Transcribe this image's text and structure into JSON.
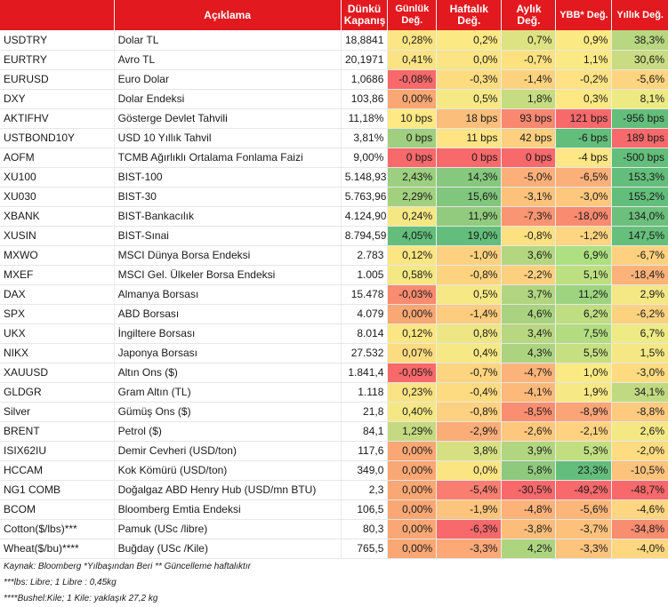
{
  "header": {
    "aciklama": "Açıklama",
    "close_line1": "Dünkü",
    "close_line2": "Kapanış",
    "daily": "Günlük Değ.",
    "weekly_line1": "Haftalık",
    "weekly_line2": "Değ.",
    "monthly_line1": "Aylık",
    "monthly_line2": "Değ.",
    "ytd": "YBB* Değ.",
    "yearly": "Yıllık Değ."
  },
  "rows": [
    {
      "sym": "USDTRY",
      "desc": "Dolar TL",
      "close": "18,8841",
      "cells": [
        {
          "v": "0,28%",
          "c": "#fbe584"
        },
        {
          "v": "0,2%",
          "c": "#fbe984"
        },
        {
          "v": "0,7%",
          "c": "#dde282"
        },
        {
          "v": "0,9%",
          "c": "#fbe983"
        },
        {
          "v": "38,3%",
          "c": "#b8d780"
        }
      ]
    },
    {
      "sym": "EURTRY",
      "desc": "Avro TL",
      "close": "20,1971",
      "cells": [
        {
          "v": "0,41%",
          "c": "#fbe383"
        },
        {
          "v": "0,0%",
          "c": "#fbe482"
        },
        {
          "v": "-0,7%",
          "c": "#fde17f"
        },
        {
          "v": "1,1%",
          "c": "#fbe983"
        },
        {
          "v": "30,6%",
          "c": "#c9dc81"
        }
      ]
    },
    {
      "sym": "EURUSD",
      "desc": "Euro Dolar",
      "close": "1,0686",
      "cells": [
        {
          "v": "-0,08%",
          "c": "#f8696b"
        },
        {
          "v": "-0,3%",
          "c": "#fddc80"
        },
        {
          "v": "-1,4%",
          "c": "#fdd27f"
        },
        {
          "v": "-0,2%",
          "c": "#fee283"
        },
        {
          "v": "-5,6%",
          "c": "#fdd480"
        }
      ]
    },
    {
      "sym": "DXY",
      "desc": "Dolar Endeksi",
      "close": "103,86",
      "cells": [
        {
          "v": "0,00%",
          "c": "#f9a774"
        },
        {
          "v": "0,5%",
          "c": "#f6e884"
        },
        {
          "v": "1,8%",
          "c": "#c5dc81"
        },
        {
          "v": "0,3%",
          "c": "#fde883"
        },
        {
          "v": "8,1%",
          "c": "#edea84"
        }
      ]
    },
    {
      "sym": "AKTIFHV",
      "desc": "Gösterge Devlet Tahvili",
      "close": "11,18%",
      "cells": [
        {
          "v": "10 bps",
          "c": "#fee984"
        },
        {
          "v": "18 bps",
          "c": "#fcbf7b"
        },
        {
          "v": "93 bps",
          "c": "#f98871"
        },
        {
          "v": "121 bps",
          "c": "#f8696b"
        },
        {
          "v": "-956 bps",
          "c": "#63be7b"
        }
      ]
    },
    {
      "sym": "USTBOND10Y",
      "desc": "USD 10 Yıllık Tahvil",
      "close": "3,81%",
      "cells": [
        {
          "v": "0 bps",
          "c": "#9fcf7f"
        },
        {
          "v": "11 bps",
          "c": "#fee483"
        },
        {
          "v": "42 bps",
          "c": "#fdcf7e"
        },
        {
          "v": "-6 bps",
          "c": "#63be7b"
        },
        {
          "v": "189 bps",
          "c": "#f8696b"
        }
      ]
    },
    {
      "sym": "AOFM",
      "desc": "TCMB Ağırlıklı Ortalama Fonlama Faizi",
      "close": "9,00%",
      "cells": [
        {
          "v": "0 bps",
          "c": "#f8696b"
        },
        {
          "v": "0 bps",
          "c": "#f8696b"
        },
        {
          "v": "0 bps",
          "c": "#f8696b"
        },
        {
          "v": "-4 bps",
          "c": "#fee784"
        },
        {
          "v": "-500 bps",
          "c": "#63be7b"
        }
      ]
    },
    {
      "sym": "XU100",
      "desc": "BIST-100",
      "close": "5.148,93",
      "cells": [
        {
          "v": "2,43%",
          "c": "#9ccf7f"
        },
        {
          "v": "14,3%",
          "c": "#86c87d"
        },
        {
          "v": "-5,0%",
          "c": "#fcaf78"
        },
        {
          "v": "-6,5%",
          "c": "#fcb079"
        },
        {
          "v": "153,3%",
          "c": "#64be7b"
        }
      ]
    },
    {
      "sym": "XU030",
      "desc": "BIST-30",
      "close": "5.763,96",
      "cells": [
        {
          "v": "2,29%",
          "c": "#a1d07f"
        },
        {
          "v": "15,6%",
          "c": "#80c67d"
        },
        {
          "v": "-3,1%",
          "c": "#fcc27c"
        },
        {
          "v": "-3,0%",
          "c": "#fdc87d"
        },
        {
          "v": "155,2%",
          "c": "#63be7b"
        }
      ]
    },
    {
      "sym": "XBANK",
      "desc": "BIST-Bankacılık",
      "close": "4.124,90",
      "cells": [
        {
          "v": "0,24%",
          "c": "#f5e884"
        },
        {
          "v": "11,9%",
          "c": "#92cb7e"
        },
        {
          "v": "-7,3%",
          "c": "#fa9573"
        },
        {
          "v": "-18,0%",
          "c": "#f98b70"
        },
        {
          "v": "134,0%",
          "c": "#6cc07c"
        }
      ]
    },
    {
      "sym": "XUSIN",
      "desc": "BIST-Sınai",
      "close": "8.794,59",
      "cells": [
        {
          "v": "4,05%",
          "c": "#63be7b"
        },
        {
          "v": "19,0%",
          "c": "#63be7b"
        },
        {
          "v": "-0,8%",
          "c": "#fde080"
        },
        {
          "v": "-1,2%",
          "c": "#fed580"
        },
        {
          "v": "147,5%",
          "c": "#66bf7b"
        }
      ]
    },
    {
      "sym": "MXWO",
      "desc": "MSCI Dünya Borsa Endeksi",
      "close": "2.783",
      "cells": [
        {
          "v": "0,12%",
          "c": "#fce683"
        },
        {
          "v": "-1,0%",
          "c": "#fdd17f"
        },
        {
          "v": "3,6%",
          "c": "#b4d680"
        },
        {
          "v": "6,9%",
          "c": "#ace080"
        },
        {
          "v": "-6,7%",
          "c": "#fdd17f"
        }
      ]
    },
    {
      "sym": "MXEF",
      "desc": "MSCI Gel. Ülkeler Borsa Endeksi",
      "close": "1.005",
      "cells": [
        {
          "v": "0,58%",
          "c": "#f3e884"
        },
        {
          "v": "-0,8%",
          "c": "#fdd37f"
        },
        {
          "v": "-2,2%",
          "c": "#fdd07f"
        },
        {
          "v": "5,1%",
          "c": "#bcdf81"
        },
        {
          "v": "-18,4%",
          "c": "#fcb379"
        }
      ]
    },
    {
      "sym": "DAX",
      "desc": "Almanya Borsası",
      "close": "15.478",
      "cells": [
        {
          "v": "-0,03%",
          "c": "#f98b70"
        },
        {
          "v": "0,5%",
          "c": "#f6e884"
        },
        {
          "v": "3,7%",
          "c": "#b1d580"
        },
        {
          "v": "11,2%",
          "c": "#9ed480"
        },
        {
          "v": "2,9%",
          "c": "#f3e884"
        }
      ]
    },
    {
      "sym": "SPX",
      "desc": "ABD Borsası",
      "close": "4.079",
      "cells": [
        {
          "v": "0,00%",
          "c": "#f9a774"
        },
        {
          "v": "-1,4%",
          "c": "#fdcc7e"
        },
        {
          "v": "4,6%",
          "c": "#a9d37f"
        },
        {
          "v": "6,2%",
          "c": "#bfdd81"
        },
        {
          "v": "-6,2%",
          "c": "#fdd27f"
        }
      ]
    },
    {
      "sym": "UKX",
      "desc": "İngiltere Borsası",
      "close": "8.014",
      "cells": [
        {
          "v": "0,12%",
          "c": "#fce683"
        },
        {
          "v": "0,8%",
          "c": "#eee684"
        },
        {
          "v": "3,4%",
          "c": "#b7d780"
        },
        {
          "v": "7,5%",
          "c": "#b3dc80"
        },
        {
          "v": "6,7%",
          "c": "#eeea84"
        }
      ]
    },
    {
      "sym": "NIKX",
      "desc": "Japonya Borsası",
      "close": "27.532",
      "cells": [
        {
          "v": "0,07%",
          "c": "#fbdc81"
        },
        {
          "v": "0,4%",
          "c": "#f6e884"
        },
        {
          "v": "4,3%",
          "c": "#acd480"
        },
        {
          "v": "5,5%",
          "c": "#c5df81"
        },
        {
          "v": "1,5%",
          "c": "#f5e884"
        }
      ]
    },
    {
      "sym": "XAUUSD",
      "desc": "Altın Ons ($)",
      "close": "1.841,4",
      "cells": [
        {
          "v": "-0,05%",
          "c": "#f8696b"
        },
        {
          "v": "-0,7%",
          "c": "#fdd47f"
        },
        {
          "v": "-4,7%",
          "c": "#fcb379"
        },
        {
          "v": "1,0%",
          "c": "#fbe983"
        },
        {
          "v": "-3,0%",
          "c": "#fedb80"
        }
      ]
    },
    {
      "sym": "GLDGR",
      "desc": "Gram Altın (TL)",
      "close": "1.118",
      "cells": [
        {
          "v": "0,23%",
          "c": "#fae384"
        },
        {
          "v": "-0,4%",
          "c": "#fddb80"
        },
        {
          "v": "-4,1%",
          "c": "#fcb97a"
        },
        {
          "v": "1,9%",
          "c": "#f6e884"
        },
        {
          "v": "34,1%",
          "c": "#c1da81"
        }
      ]
    },
    {
      "sym": "Silver",
      "desc": "Gümüş Ons ($)",
      "close": "21,8",
      "cells": [
        {
          "v": "0,40%",
          "c": "#f5e884"
        },
        {
          "v": "-0,8%",
          "c": "#fdd17f"
        },
        {
          "v": "-8,5%",
          "c": "#fa8e71"
        },
        {
          "v": "-8,9%",
          "c": "#fba477"
        },
        {
          "v": "-8,8%",
          "c": "#fdca7e"
        }
      ]
    },
    {
      "sym": "BRENT",
      "desc": "Petrol ($)",
      "close": "84,1",
      "cells": [
        {
          "v": "1,29%",
          "c": "#c5d981"
        },
        {
          "v": "-2,9%",
          "c": "#fbad78"
        },
        {
          "v": "-2,6%",
          "c": "#fdc87d"
        },
        {
          "v": "-2,1%",
          "c": "#fed280"
        },
        {
          "v": "2,6%",
          "c": "#f3e884"
        }
      ]
    },
    {
      "sym": "ISIX62IU",
      "desc": "Demir Cevheri (USD/ton)",
      "close": "117,6",
      "cells": [
        {
          "v": "0,00%",
          "c": "#f9a774"
        },
        {
          "v": "3,8%",
          "c": "#d6e082"
        },
        {
          "v": "3,9%",
          "c": "#b1d580"
        },
        {
          "v": "5,3%",
          "c": "#c1de81"
        },
        {
          "v": "-2,0%",
          "c": "#fedc81"
        }
      ]
    },
    {
      "sym": "HCCAM",
      "desc": "Kok Kömürü (USD/ton)",
      "close": "349,0",
      "cells": [
        {
          "v": "0,00%",
          "c": "#f9a774"
        },
        {
          "v": "0,0%",
          "c": "#fbe482"
        },
        {
          "v": "5,8%",
          "c": "#8ec97e"
        },
        {
          "v": "23,3%",
          "c": "#63be7b"
        },
        {
          "v": "-10,5%",
          "c": "#fcc37c"
        }
      ]
    },
    {
      "sym": "NG1 COMB",
      "desc": "Doğalgaz ABD Henry Hub (USD/mn BTU)",
      "close": "2,3",
      "cells": [
        {
          "v": "0,00%",
          "c": "#f9a774"
        },
        {
          "v": "-5,4%",
          "c": "#f97e6f"
        },
        {
          "v": "-30,5%",
          "c": "#f8696b"
        },
        {
          "v": "-49,2%",
          "c": "#f8696b"
        },
        {
          "v": "-48,7%",
          "c": "#f8696b"
        }
      ]
    },
    {
      "sym": "BCOM",
      "desc": "Bloomberg Emtia Endeksi",
      "close": "106,5",
      "cells": [
        {
          "v": "0,00%",
          "c": "#f9a774"
        },
        {
          "v": "-1,9%",
          "c": "#fcc47c"
        },
        {
          "v": "-4,8%",
          "c": "#fcb279"
        },
        {
          "v": "-5,6%",
          "c": "#fcb679"
        },
        {
          "v": "-4,6%",
          "c": "#fed580"
        }
      ]
    },
    {
      "sym": "Cotton($/lbs)***",
      "desc": "Pamuk (USc /libre)",
      "close": "80,3",
      "cells": [
        {
          "v": "0,00%",
          "c": "#f9a774"
        },
        {
          "v": "-6,3%",
          "c": "#f8696b"
        },
        {
          "v": "-3,8%",
          "c": "#fcbd7b"
        },
        {
          "v": "-3,7%",
          "c": "#fdc17c"
        },
        {
          "v": "-34,8%",
          "c": "#f98d70"
        }
      ]
    },
    {
      "sym": "Wheat($/bu)****",
      "desc": "Buğday (USc /Kile)",
      "close": "765,5",
      "cells": [
        {
          "v": "0,00%",
          "c": "#f9a774"
        },
        {
          "v": "-3,3%",
          "c": "#fca877"
        },
        {
          "v": "4,2%",
          "c": "#add580"
        },
        {
          "v": "-3,3%",
          "c": "#fdc47d"
        },
        {
          "v": "-4,0%",
          "c": "#fed780"
        }
      ]
    }
  ],
  "notes": {
    "line1": "Kaynak: Bloomberg *Yılbaşından Beri  ** Güncelleme haftalıktır",
    "line2": "***lbs: Libre; 1 Libre : 0,45kg",
    "line3": "****Bushel:Kile; 1 Kile: yaklaşık 27,2 kg"
  }
}
